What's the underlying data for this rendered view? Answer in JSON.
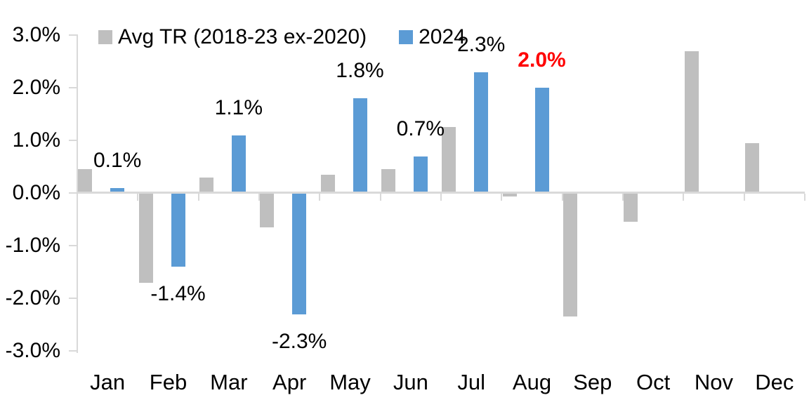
{
  "legend": {
    "items": [
      {
        "label": "Avg TR (2018-23 ex-2020)",
        "color": "#BFBFBF"
      },
      {
        "label": "2024",
        "color": "#5B9BD5"
      }
    ]
  },
  "axis": {
    "line_color": "#D9D9D9",
    "text_color": "#000000"
  },
  "chart_data": {
    "type": "bar",
    "title": "",
    "xlabel": "",
    "ylabel": "",
    "categories": [
      "Jan",
      "Feb",
      "Mar",
      "Apr",
      "May",
      "Jun",
      "Jul",
      "Aug",
      "Sep",
      "Oct",
      "Nov",
      "Dec"
    ],
    "series": [
      {
        "name": "Avg TR (2018-23 ex-2020)",
        "color": "#BFBFBF",
        "values": [
          0.45,
          -1.7,
          0.3,
          -0.65,
          0.35,
          0.45,
          1.25,
          -0.07,
          -2.35,
          -0.55,
          2.7,
          0.95
        ]
      },
      {
        "name": "2024",
        "color": "#5B9BD5",
        "values": [
          0.1,
          -1.4,
          1.1,
          -2.3,
          1.8,
          0.7,
          2.3,
          2.0,
          null,
          null,
          null,
          null
        ],
        "data_labels": [
          {
            "text": "0.1%",
            "color": "#000000",
            "bold": false
          },
          {
            "text": "-1.4%",
            "color": "#000000",
            "bold": false
          },
          {
            "text": "1.1%",
            "color": "#000000",
            "bold": false
          },
          {
            "text": "-2.3%",
            "color": "#000000",
            "bold": false
          },
          {
            "text": "1.8%",
            "color": "#000000",
            "bold": false
          },
          {
            "text": "0.7%",
            "color": "#000000",
            "bold": false
          },
          {
            "text": "2.3%",
            "color": "#000000",
            "bold": false
          },
          {
            "text": "2.0%",
            "color": "#FF0000",
            "bold": true
          }
        ]
      }
    ],
    "ylim": [
      -3.0,
      3.0
    ],
    "yticks": [
      3.0,
      2.0,
      1.0,
      0.0,
      -1.0,
      -2.0,
      -3.0
    ],
    "ytick_labels": [
      "3.0%",
      "2.0%",
      "1.0%",
      "0.0%",
      "-1.0%",
      "-2.0%",
      "-3.0%"
    ],
    "grid": false,
    "legend_position": "top-left-inside"
  }
}
